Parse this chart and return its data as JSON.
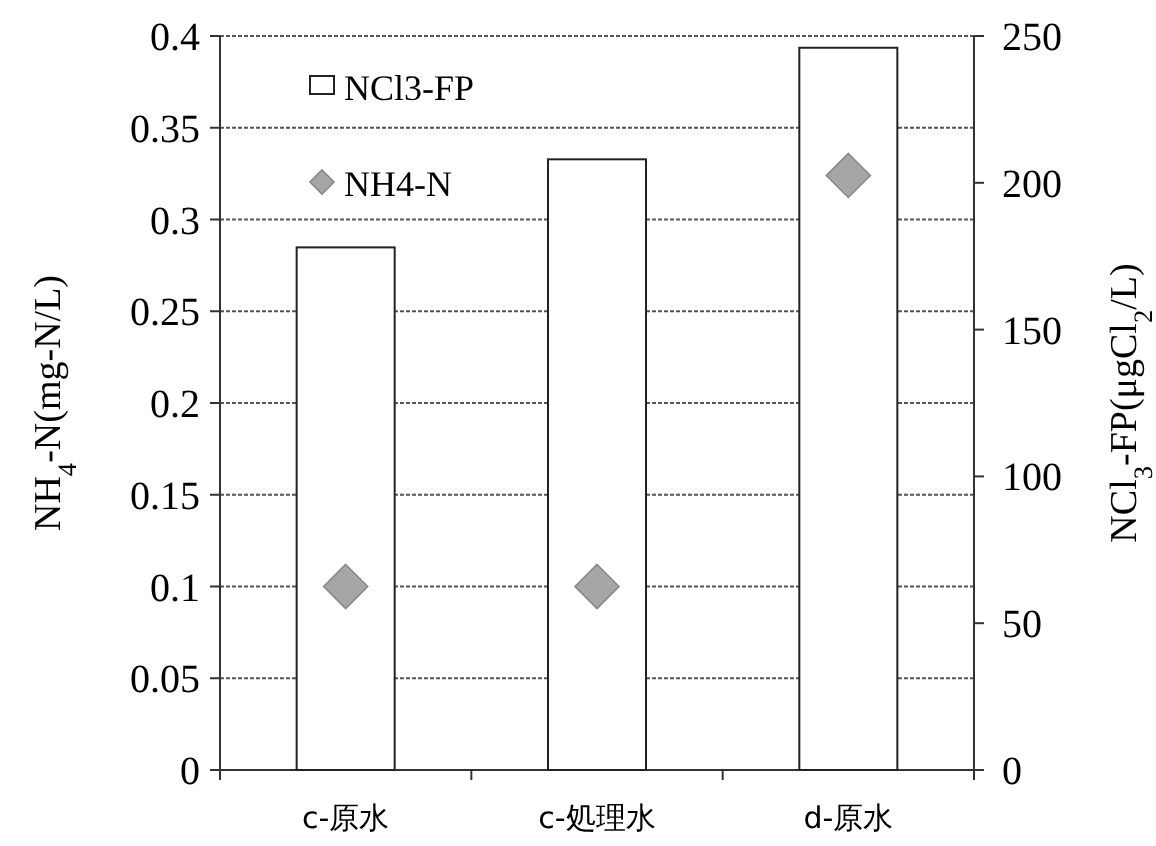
{
  "chart_data": {
    "type": "bar",
    "categories": [
      "c-原水",
      "c-処理水",
      "d-原水"
    ],
    "ylabel": "NH$_{4}$-N(mg-N/L)",
    "y2label": "NCl$_{3}$-FP(μgCl$_{2}$/L)",
    "ylim": [
      0,
      0.4
    ],
    "yticks": [
      0,
      0.05,
      0.1,
      0.15,
      0.2,
      0.25,
      0.3,
      0.35,
      0.4
    ],
    "y2lim": [
      0,
      250
    ],
    "y2ticks": [
      0,
      50,
      100,
      150,
      200,
      250
    ],
    "grid": "y",
    "legend": "top left",
    "marker": "diamond",
    "series": [
      {
        "name": "NCl3-FP",
        "axis": "y2",
        "color": "#ffffff",
        "values": [
          178,
          208,
          246
        ]
      },
      {
        "name": "NH4-N",
        "type": "scatter",
        "color": "#a6a6a6",
        "values": [
          0.1,
          0.1,
          0.324
        ]
      }
    ]
  }
}
